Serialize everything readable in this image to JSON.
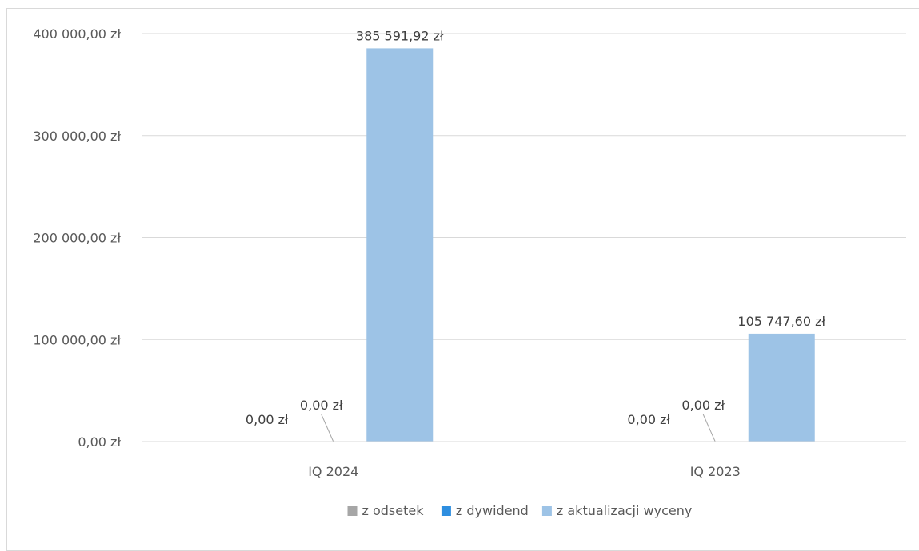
{
  "chart_data": {
    "type": "bar",
    "categories": [
      "IQ 2024",
      "IQ 2023"
    ],
    "series": [
      {
        "name": "z odsetek",
        "values": [
          0,
          0
        ],
        "color": "#a6a6a6",
        "labels": [
          "0,00 zł",
          "0,00 zł"
        ]
      },
      {
        "name": "z dywidend",
        "values": [
          0,
          0
        ],
        "color": "#2e8ee0",
        "labels": [
          "0,00 zł",
          "0,00 zł"
        ]
      },
      {
        "name": "z aktualizacji wyceny",
        "values": [
          385591.92,
          105747.6
        ],
        "color": "#9dc3e6",
        "labels": [
          "385 591,92 zł",
          "105 747,60 zł"
        ]
      }
    ],
    "ylim": [
      0,
      400000
    ],
    "yticks": [
      {
        "value": 0,
        "label": "0,00 zł"
      },
      {
        "value": 100000,
        "label": "100 000,00 zł"
      },
      {
        "value": 200000,
        "label": "200 000,00 zł"
      },
      {
        "value": 300000,
        "label": "300 000,00 zł"
      },
      {
        "value": 400000,
        "label": "400 000,00 zł"
      }
    ],
    "grid": true,
    "legend": "bottom",
    "title": "",
    "xlabel": "",
    "ylabel": ""
  }
}
